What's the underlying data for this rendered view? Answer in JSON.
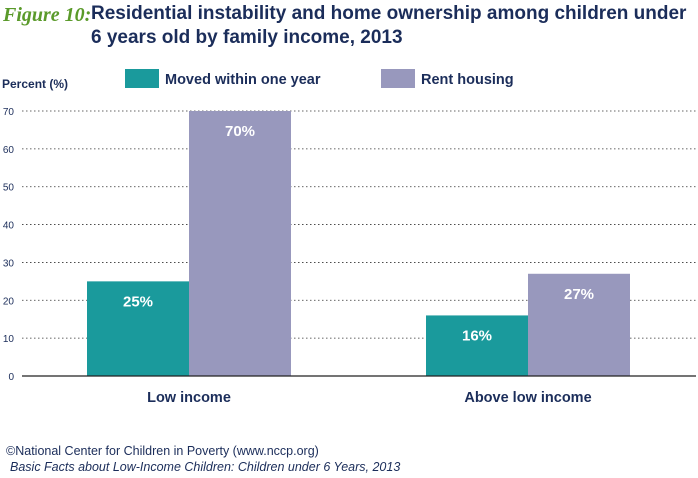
{
  "header": {
    "figure_label": "Figure 10:",
    "title": "Residential instability and home ownership among children under 6 years old by family income, 2013"
  },
  "footer": {
    "credit": "©National Center for Children in Poverty (www.nccp.org)",
    "source": "Basic Facts about Low-Income Children: Children under 6 Years, 2013"
  },
  "chart_data": {
    "type": "bar",
    "title": "Residential instability and home ownership among children under 6 years old by family income, 2013",
    "ylabel": "Percent (%)",
    "xlabel": "",
    "categories": [
      "Low income",
      "Above low income"
    ],
    "series": [
      {
        "name": "Moved within one year",
        "values": [
          25,
          16
        ],
        "labels": [
          "25%",
          "16%"
        ],
        "color": "#1a9a9c"
      },
      {
        "name": "Rent housing",
        "values": [
          70,
          27
        ],
        "labels": [
          "70%",
          "27%"
        ],
        "color": "#9898bd"
      }
    ],
    "ylim": [
      0,
      70
    ],
    "yticks": [
      0,
      10,
      20,
      30,
      40,
      50,
      60,
      70
    ],
    "grid": "horizontal-dotted",
    "legend_position": "top"
  }
}
